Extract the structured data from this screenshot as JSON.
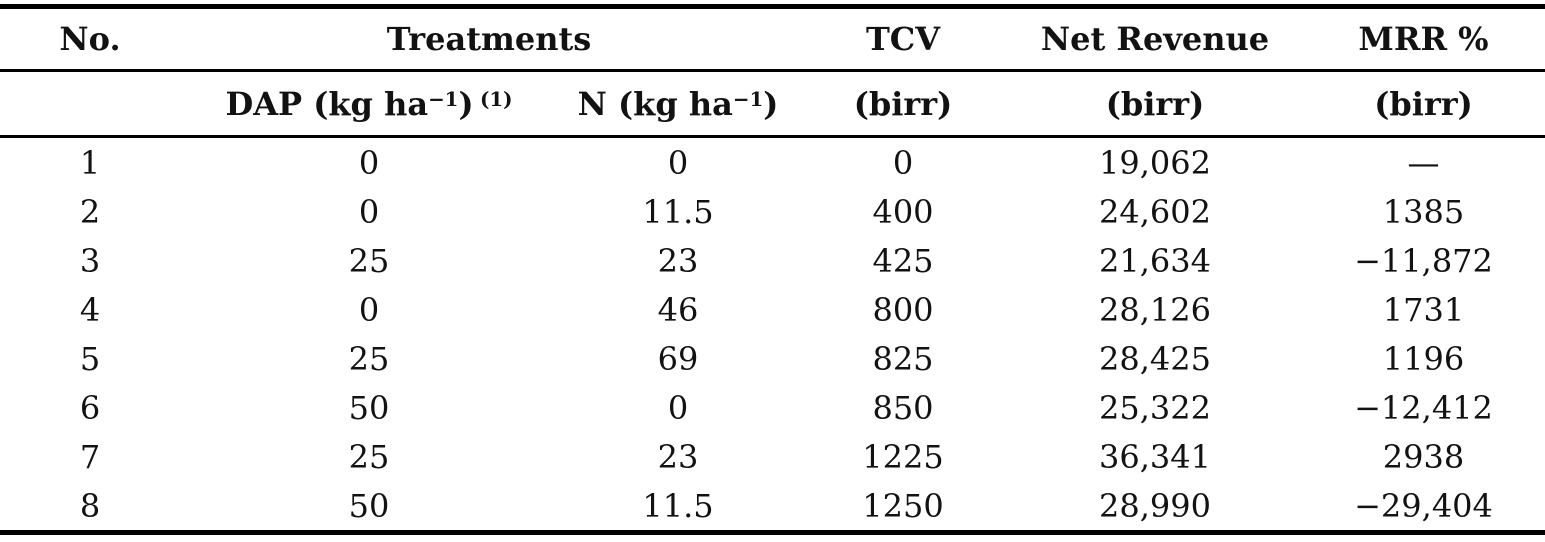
{
  "colors": {
    "background": "#ffffff",
    "text": "#121212",
    "rule": "#000000"
  },
  "table": {
    "header": {
      "no": "No.",
      "treatments": "Treatments",
      "tcv": "TCV",
      "net_revenue": "Net Revenue",
      "mrr": "MRR %",
      "sub": {
        "dap": {
          "text": "DAP (kg ha",
          "sup": "−1",
          "close": ")",
          "note": "(1)"
        },
        "n": {
          "text": "N (kg ha",
          "sup": "−1",
          "close": ")"
        },
        "tcv_unit": "(birr)",
        "net_revenue_unit": "(birr)",
        "mrr_unit": "(birr)"
      }
    },
    "rows": [
      [
        "1",
        "0",
        "0",
        "0",
        "19,062",
        "—"
      ],
      [
        "2",
        "0",
        "11.5",
        "400",
        "24,602",
        "1385"
      ],
      [
        "3",
        "25",
        "23",
        "425",
        "21,634",
        "−11,872"
      ],
      [
        "4",
        "0",
        "46",
        "800",
        "28,126",
        "1731"
      ],
      [
        "5",
        "25",
        "69",
        "825",
        "28,425",
        "1196"
      ],
      [
        "6",
        "50",
        "0",
        "850",
        "25,322",
        "−12,412"
      ],
      [
        "7",
        "25",
        "23",
        "1225",
        "36,341",
        "2938"
      ],
      [
        "8",
        "50",
        "11.5",
        "1250",
        "28,990",
        "−29,404"
      ]
    ]
  }
}
